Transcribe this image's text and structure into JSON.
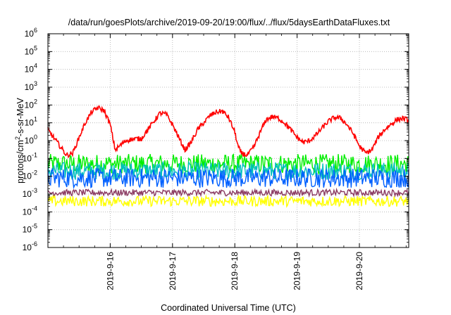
{
  "chart_data": {
    "type": "line",
    "title": "/data/run/goesPlots/archive/2019-09-20/19:00/flux/../flux/5daysEarthDataFluxes.txt",
    "xlabel": "Coordinated Universal Time (UTC)",
    "ylabel_main": "protons/cm",
    "ylabel_sup": "2",
    "ylabel_rest": "-s-sr-MeV",
    "x_tick_labels": [
      "2019-9-16",
      "2019-9-17",
      "2019-9-18",
      "2019-9-19",
      "2019-9-20"
    ],
    "xlim": [
      "2019-09-15 00:00",
      "2019-09-20 19:00"
    ],
    "y_scale": "log",
    "ylim": [
      1e-06,
      1000000
    ],
    "y_tick_exponents": [
      -6,
      -5,
      -4,
      -3,
      -2,
      -1,
      0,
      1,
      2,
      3,
      4,
      5,
      6
    ],
    "y_tick_base": "10",
    "grid": true,
    "series": [
      {
        "color": "#ff0000",
        "x_days": [
          0.0,
          0.15,
          0.3,
          0.4,
          0.5,
          0.6,
          0.7,
          0.8,
          0.9,
          1.0,
          1.08,
          1.15,
          1.25,
          1.35,
          1.5,
          1.6,
          1.7,
          1.8,
          1.9,
          2.0,
          2.1,
          2.2,
          2.3,
          2.4,
          2.5,
          2.6,
          2.7,
          2.8,
          2.9,
          3.0,
          3.05,
          3.1,
          3.2,
          3.3,
          3.4,
          3.5,
          3.6,
          3.7,
          3.8,
          3.9,
          4.0,
          4.1,
          4.2,
          4.3,
          4.4,
          4.5,
          4.6,
          4.7,
          4.8,
          4.9,
          5.0,
          5.1,
          5.2,
          5.3,
          5.4,
          5.5,
          5.6,
          5.7,
          5.79
        ],
        "y": [
          4,
          0.8,
          0.15,
          0.2,
          1.5,
          10,
          40,
          70,
          50,
          8,
          0.3,
          0.5,
          1,
          1.2,
          1.3,
          4,
          12,
          35,
          30,
          8,
          1.5,
          0.3,
          0.8,
          4,
          10,
          25,
          40,
          45,
          20,
          3,
          0.5,
          0.2,
          0.15,
          0.4,
          2.5,
          15,
          22,
          18,
          10,
          4,
          1.5,
          0.8,
          1,
          2,
          5,
          12,
          20,
          18,
          8,
          2.5,
          0.5,
          0.2,
          0.3,
          1.5,
          4,
          8,
          15,
          18,
          14
        ]
      },
      {
        "color": "#00ee00",
        "level": 0.05
      },
      {
        "color": "#00bfbf",
        "level": 0.02
      },
      {
        "color": "#0060ff",
        "level": 0.008
      },
      {
        "color": "#8b3a62",
        "level": 0.0012
      },
      {
        "color": "#ffff00",
        "level": 0.0004
      }
    ]
  }
}
